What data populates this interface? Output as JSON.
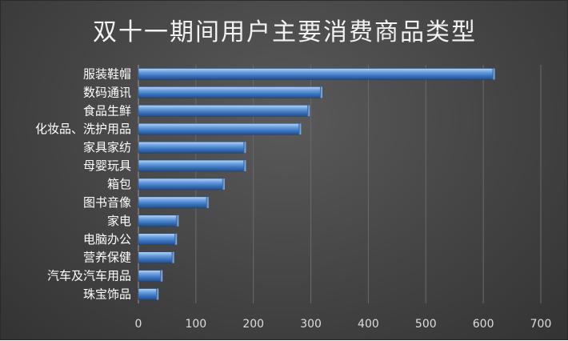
{
  "chart_data": {
    "type": "bar",
    "orientation": "horizontal",
    "title": "双十一期间用户主要消费商品类型",
    "xlabel": "",
    "ylabel": "",
    "categories": [
      "服装鞋帽",
      "数码通讯",
      "食品生鲜",
      "化妆品、洗护用品",
      "家具家纺",
      "母婴玩具",
      "箱包",
      "图书音像",
      "家电",
      "电脑办公",
      "营养保健",
      "汽车及汽车用品",
      "珠宝饰品"
    ],
    "values": [
      620,
      320,
      298,
      283,
      187,
      187,
      150,
      122,
      70,
      67,
      62,
      42,
      35
    ],
    "xlim": [
      0,
      700
    ],
    "xticks": [
      0,
      100,
      200,
      300,
      400,
      500,
      600,
      700
    ],
    "grid": true,
    "legend": "none",
    "bar_color": "#4a86cf"
  }
}
